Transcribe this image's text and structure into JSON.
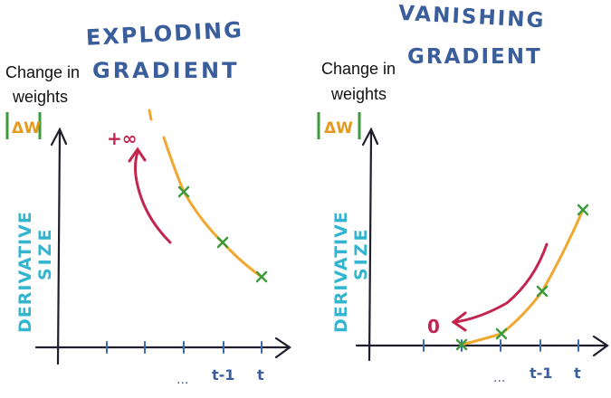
{
  "colors": {
    "title": "#3a5e9c",
    "axis": "#1e1e2c",
    "curve": "#f0a830",
    "point": "#3d9a3d",
    "arrow": "#c2254e",
    "derivative_label": "#33b5cf",
    "delta_box": "#3d9a3d",
    "delta_text": "#e49a1c"
  },
  "panels": [
    {
      "name": "exploding",
      "title_line1": "EXPLODING",
      "title_line2": "GRADIENT",
      "y_label_line1": "Change in",
      "y_label_line2": "weights",
      "delta_label": "ΔW",
      "derivative_line1": "DERIVATIVE",
      "derivative_line2": "SIZE",
      "tick_labels": [
        "...",
        "t-1",
        "t"
      ],
      "arrow_label": "+∞"
    },
    {
      "name": "vanishing",
      "title_line1": "VANISHING",
      "title_line2": "GRADIENT",
      "y_label_line1": "Change in",
      "y_label_line2": "weights",
      "delta_label": "ΔW",
      "derivative_line1": "DERIVATIVE",
      "derivative_line2": "SIZE",
      "tick_labels": [
        "...",
        "t-1",
        "t"
      ],
      "arrow_label": "0"
    }
  ]
}
